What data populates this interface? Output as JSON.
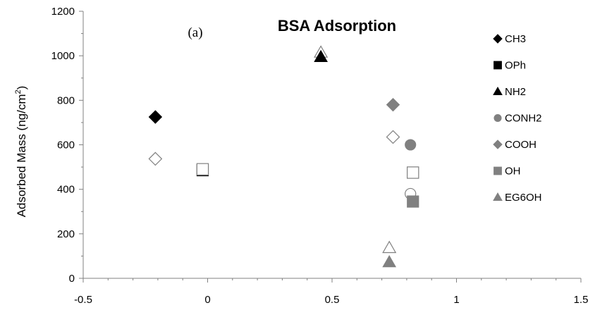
{
  "chart_data": {
    "type": "scatter",
    "title": "BSA Adsorption",
    "panel_label": "(a)",
    "xlabel": "",
    "ylabel": "Adsorbed Mass (ng/cm",
    "ylabel_sup": "2",
    "ylabel_end": ")",
    "xlim": [
      -0.5,
      1.5
    ],
    "ylim": [
      0,
      1200
    ],
    "xticks": [
      -0.5,
      0,
      0.5,
      1,
      1.5
    ],
    "xtick_labels": [
      "-0.5",
      "0",
      "0.5",
      "1",
      "1.5"
    ],
    "yticks": [
      0,
      200,
      400,
      600,
      800,
      1000,
      1200
    ],
    "ytick_labels": [
      "0",
      "200",
      "400",
      "600",
      "800",
      "1000",
      "1200"
    ],
    "grid": false,
    "legend_position": "right",
    "series": [
      {
        "name": "CH3",
        "marker": "diamond",
        "color": "#000000",
        "points": [
          {
            "x": -0.21,
            "y": 725,
            "filled": true
          },
          {
            "x": -0.21,
            "y": 537,
            "filled": false
          }
        ]
      },
      {
        "name": "OPh",
        "marker": "square",
        "color": "#000000",
        "points": [
          {
            "x": -0.02,
            "y": 486,
            "filled": true
          },
          {
            "x": -0.02,
            "y": 490,
            "filled": false
          }
        ]
      },
      {
        "name": "NH2",
        "marker": "triangle",
        "color": "#000000",
        "points": [
          {
            "x": 0.455,
            "y": 1015,
            "filled": false
          },
          {
            "x": 0.455,
            "y": 995,
            "filled": true
          }
        ]
      },
      {
        "name": "CONH2",
        "marker": "circle",
        "color": "#808080",
        "points": [
          {
            "x": 0.815,
            "y": 600,
            "filled": true
          },
          {
            "x": 0.815,
            "y": 380,
            "filled": false
          }
        ]
      },
      {
        "name": "COOH",
        "marker": "diamond",
        "color": "#808080",
        "points": [
          {
            "x": 0.745,
            "y": 780,
            "filled": true
          },
          {
            "x": 0.745,
            "y": 635,
            "filled": false
          }
        ]
      },
      {
        "name": "OH",
        "marker": "square",
        "color": "#808080",
        "points": [
          {
            "x": 0.825,
            "y": 475,
            "filled": false
          },
          {
            "x": 0.825,
            "y": 345,
            "filled": true
          }
        ]
      },
      {
        "name": "EG6OH",
        "marker": "triangle",
        "color": "#808080",
        "points": [
          {
            "x": 0.73,
            "y": 137,
            "filled": false
          },
          {
            "x": 0.73,
            "y": 73,
            "filled": true
          }
        ]
      }
    ]
  }
}
